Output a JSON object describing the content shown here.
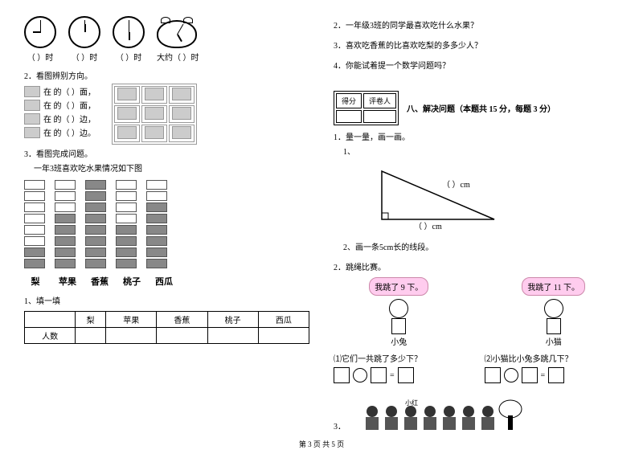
{
  "left": {
    "clocks": [
      {
        "hour_angle": 270,
        "min_angle": 0,
        "label": "（    ）时"
      },
      {
        "hour_angle": 0,
        "min_angle": 0,
        "label": "（    ）时"
      },
      {
        "hour_angle": 180,
        "min_angle": 0,
        "label": "（    ）时"
      },
      {
        "hour_angle": 150,
        "min_angle": 30,
        "label": "大约（    ）时"
      }
    ],
    "q2_title": "2．看图辨别方向。",
    "dir_lines": [
      "在         的（    ）面，",
      "在         的（    ）面，",
      "在         的（    ）边，",
      "在         的（    ）边。"
    ],
    "q3_title": "3．看图完成问题。",
    "q3_sub": "一年3班喜欢吃水果情况如下图",
    "fruits": [
      "梨",
      "苹果",
      "香蕉",
      "桃子",
      "西瓜"
    ],
    "bars": [
      {
        "filled": 2,
        "empty": 6
      },
      {
        "filled": 5,
        "empty": 3
      },
      {
        "filled": 8,
        "empty": 0
      },
      {
        "filled": 4,
        "empty": 4
      },
      {
        "filled": 6,
        "empty": 2
      }
    ],
    "sub1": "1、填一填",
    "table_row_label": "人数"
  },
  "right": {
    "q2": "2．一年级3班的同学最喜欢吃什么水果？",
    "q3": "3．喜欢吃香蕉的比喜欢吃梨的多多少人？",
    "q4": "4．你能试着提一个数学问题吗？",
    "score_h1": "得分",
    "score_h2": "评卷人",
    "section8": "八、解决问题（本题共 15 分，每题 3 分）",
    "s8_q1": "1．量一量，画一画。",
    "s8_q1_1": "1、",
    "tri_labels": {
      "a": "（      ）cm",
      "b": "（      ）cm",
      "c": "（      ）cm"
    },
    "s8_q1_2": "2、画一条5cm长的线段。",
    "s8_q2": "2．跳绳比赛。",
    "bubble1": "我跳了 9 下。",
    "bubble2": "我跳了 11 下。",
    "name1": "小兔",
    "name2": "小猫",
    "sub_q1": "⑴它们一共跳了多少下？",
    "sub_q2": "⑵小猫比小兔多跳几下？",
    "eq": "=",
    "kid_label": "小红",
    "q3_num": "3．"
  },
  "footer": "第 3 页  共 5 页"
}
